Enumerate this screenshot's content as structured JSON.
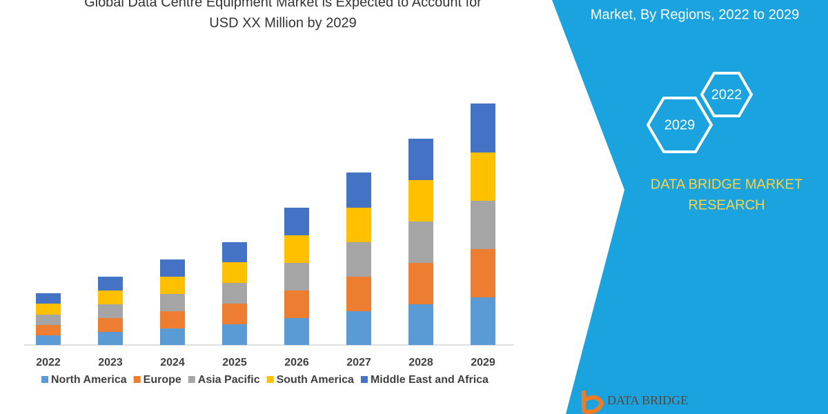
{
  "chart_data": {
    "type": "stacked-bar",
    "title": [
      "Global Data Centre Equipment Market is Expected to Account for",
      "USD XX Million by 2029"
    ],
    "categories": [
      "2022",
      "2023",
      "2024",
      "2025",
      "2026",
      "2027",
      "2028",
      "2029"
    ],
    "series": [
      {
        "name": "North America",
        "color": "#5b9bd5",
        "values": [
          14,
          19,
          24,
          30,
          39,
          49,
          59,
          69
        ]
      },
      {
        "name": "Europe",
        "color": "#ed7d31",
        "values": [
          15,
          20,
          25,
          30,
          40,
          50,
          60,
          70
        ]
      },
      {
        "name": "Asia Pacific",
        "color": "#a5a5a5",
        "values": [
          15,
          20,
          25,
          30,
          40,
          50,
          60,
          70
        ]
      },
      {
        "name": "South America",
        "color": "#ffc000",
        "values": [
          16,
          20,
          25,
          30,
          40,
          50,
          60,
          70
        ]
      },
      {
        "name": "Middle East and Africa",
        "color": "#4472c4",
        "values": [
          15,
          20,
          25,
          29,
          40,
          51,
          60,
          71
        ]
      }
    ]
  },
  "panel": {
    "heading": "Market, By Regions, 2022 to 2029",
    "hexagons": [
      "2022",
      "2029"
    ],
    "brand": [
      "DATA BRIDGE MARKET",
      "RESEARCH"
    ],
    "logo": "DATA BRIDGE"
  }
}
